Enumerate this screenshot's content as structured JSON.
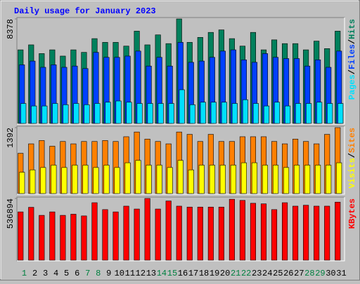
{
  "chart_data": [
    {
      "type": "bar",
      "title": "Daily usage for January 2023",
      "ylim": [
        0,
        8378
      ],
      "yticks": [
        8378
      ],
      "legend_separator": "/",
      "series": [
        {
          "name": "Hits",
          "color": "#00805c",
          "values": [
            5900,
            6300,
            5600,
            5900,
            5400,
            5900,
            5700,
            6800,
            6500,
            6500,
            6200,
            7400,
            6300,
            7100,
            6400,
            8378,
            6500,
            6900,
            7300,
            7500,
            6800,
            6200,
            7300,
            5900,
            6700,
            6400,
            6400,
            5900,
            6600,
            6000,
            7400
          ]
        },
        {
          "name": "Files",
          "color": "#0040ff",
          "values": [
            4700,
            5000,
            4500,
            4700,
            4500,
            4600,
            4400,
            5700,
            5300,
            5300,
            5400,
            5800,
            4600,
            5300,
            4600,
            6500,
            4900,
            5000,
            5300,
            5800,
            5900,
            5100,
            4900,
            5600,
            5300,
            5200,
            5200,
            4600,
            5100,
            4500,
            5800
          ]
        },
        {
          "name": "Pages",
          "color": "#00e0ff",
          "values": [
            1600,
            1400,
            1400,
            1600,
            1500,
            1600,
            1500,
            1600,
            1700,
            1800,
            1700,
            1600,
            1600,
            1600,
            1600,
            2700,
            1500,
            1700,
            1700,
            1700,
            1600,
            1900,
            1600,
            1400,
            1700,
            1400,
            1600,
            1600,
            1700,
            1600,
            1600
          ]
        }
      ]
    },
    {
      "type": "bar",
      "ylim": [
        0,
        1392
      ],
      "yticks": [
        1392
      ],
      "legend_separator": "/",
      "series": [
        {
          "name": "Sites",
          "color": "#ff8000",
          "values": [
            850,
            1050,
            1120,
            1000,
            1100,
            1050,
            1100,
            1100,
            1120,
            1100,
            1200,
            1300,
            1150,
            1100,
            1050,
            1300,
            1250,
            1100,
            1250,
            1100,
            1100,
            1200,
            1200,
            1200,
            1100,
            1050,
            1150,
            1100,
            1050,
            1250,
            1392
          ]
        },
        {
          "name": "Visits",
          "color": "#ffff00",
          "values": [
            450,
            500,
            550,
            600,
            550,
            600,
            600,
            550,
            600,
            550,
            650,
            700,
            600,
            600,
            550,
            700,
            500,
            600,
            600,
            600,
            600,
            650,
            650,
            600,
            600,
            550,
            600,
            600,
            600,
            600,
            650
          ]
        }
      ]
    },
    {
      "type": "bar",
      "ylim": [
        0,
        536894
      ],
      "yticks": [
        536894
      ],
      "categories": [
        "1",
        "2",
        "3",
        "4",
        "5",
        "6",
        "7",
        "8",
        "9",
        "10",
        "11",
        "12",
        "13",
        "14",
        "15",
        "16",
        "17",
        "18",
        "19",
        "20",
        "21",
        "22",
        "23",
        "24",
        "25",
        "26",
        "27",
        "28",
        "29",
        "30",
        "31"
      ],
      "category_colors": [
        "#008040",
        "#000000",
        "#000000",
        "#000000",
        "#000000",
        "#000000",
        "#008040",
        "#008040",
        "#000000",
        "#000000",
        "#000000",
        "#000000",
        "#000000",
        "#008040",
        "#008040",
        "#000000",
        "#000000",
        "#000000",
        "#000000",
        "#000000",
        "#008040",
        "#008040",
        "#000000",
        "#000000",
        "#000000",
        "#000000",
        "#000000",
        "#008040",
        "#008040",
        "#000000",
        "#000000"
      ],
      "series": [
        {
          "name": "KBytes",
          "color": "#ff0000",
          "values": [
            420000,
            460000,
            390000,
            420000,
            390000,
            400000,
            385000,
            500000,
            440000,
            420000,
            470000,
            445000,
            536894,
            445000,
            515000,
            470000,
            462000,
            462000,
            462000,
            462000,
            530000,
            520000,
            495000,
            490000,
            440000,
            500000,
            470000,
            478000,
            470000,
            470000,
            505000
          ]
        }
      ]
    }
  ]
}
